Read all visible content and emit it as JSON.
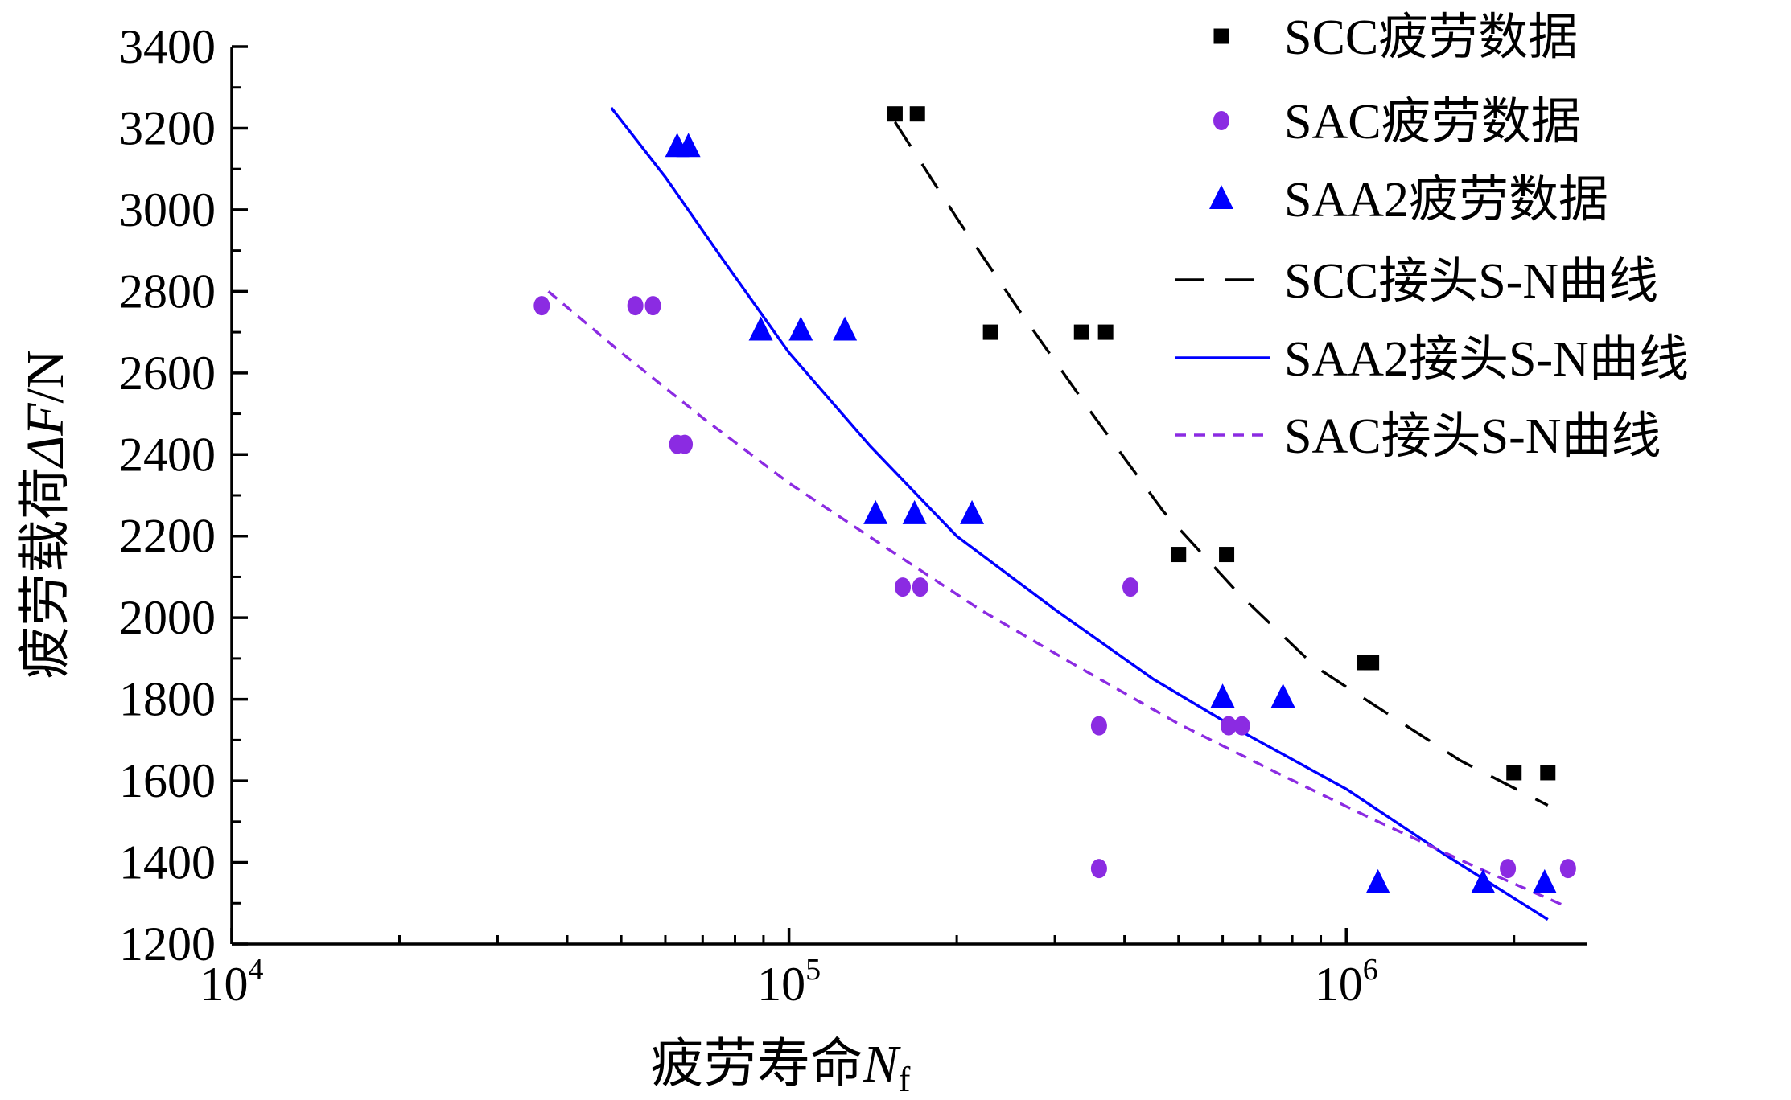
{
  "chart_data": {
    "type": "scatter",
    "xscale": "log",
    "xlim": [
      10000,
      2700000
    ],
    "ylim": [
      1200,
      3400
    ],
    "xlabel": {
      "main": "疲劳寿命",
      "var": "N",
      "sub": "f"
    },
    "ylabel": {
      "main": "疲劳载荷",
      "var": "ΔF",
      "unit": "/N"
    },
    "xticks": [
      {
        "value": 10000,
        "base": "10",
        "exp": "4"
      },
      {
        "value": 100000,
        "base": "10",
        "exp": "5"
      },
      {
        "value": 1000000,
        "base": "10",
        "exp": "6"
      }
    ],
    "yticks": [
      "1200",
      "1400",
      "1600",
      "1800",
      "2000",
      "2200",
      "2400",
      "2600",
      "2800",
      "3000",
      "3200",
      "3400"
    ],
    "grid": false,
    "legend_position": "top-right",
    "series": [
      {
        "name": "SCC疲劳数据",
        "kind": "marker",
        "marker": "square",
        "color": "#000000",
        "points": [
          [
            155000,
            3235
          ],
          [
            170000,
            3235
          ],
          [
            230000,
            2700
          ],
          [
            335000,
            2700
          ],
          [
            370000,
            2700
          ],
          [
            500000,
            2155
          ],
          [
            610000,
            2155
          ],
          [
            1080000,
            1890
          ],
          [
            1110000,
            1890
          ],
          [
            2000000,
            1620
          ],
          [
            2300000,
            1620
          ]
        ]
      },
      {
        "name": "SAC疲劳数据",
        "kind": "marker",
        "marker": "circle",
        "color": "#8b2be2",
        "points": [
          [
            36000,
            2765
          ],
          [
            53000,
            2765
          ],
          [
            57000,
            2765
          ],
          [
            63000,
            2425
          ],
          [
            65000,
            2425
          ],
          [
            160000,
            2075
          ],
          [
            172000,
            2075
          ],
          [
            360000,
            1735
          ],
          [
            410000,
            2075
          ],
          [
            615000,
            1735
          ],
          [
            650000,
            1735
          ],
          [
            360000,
            1385
          ],
          [
            1950000,
            1385
          ],
          [
            2500000,
            1385
          ]
        ]
      },
      {
        "name": "SAA2疲劳数据",
        "kind": "marker",
        "marker": "triangle",
        "color": "#0000ff",
        "points": [
          [
            63000,
            3155
          ],
          [
            66000,
            3155
          ],
          [
            89000,
            2705
          ],
          [
            105000,
            2705
          ],
          [
            126000,
            2705
          ],
          [
            143000,
            2255
          ],
          [
            168000,
            2255
          ],
          [
            213000,
            2255
          ],
          [
            600000,
            1805
          ],
          [
            770000,
            1805
          ],
          [
            1140000,
            1350
          ],
          [
            1760000,
            1350
          ],
          [
            2270000,
            1350
          ]
        ]
      },
      {
        "name": "SCC接头S-N曲线",
        "kind": "line",
        "dash": "long",
        "color": "#000000",
        "points": [
          [
            155000,
            3215
          ],
          [
            200000,
            2980
          ],
          [
            260000,
            2750
          ],
          [
            350000,
            2500
          ],
          [
            470000,
            2260
          ],
          [
            640000,
            2060
          ],
          [
            880000,
            1880
          ],
          [
            1200000,
            1760
          ],
          [
            1600000,
            1650
          ],
          [
            2300000,
            1540
          ]
        ]
      },
      {
        "name": "SAA2接头S-N曲线",
        "kind": "line",
        "dash": "solid",
        "color": "#0000ff",
        "points": [
          [
            48000,
            3250
          ],
          [
            60000,
            3080
          ],
          [
            75000,
            2890
          ],
          [
            100000,
            2650
          ],
          [
            140000,
            2420
          ],
          [
            200000,
            2200
          ],
          [
            300000,
            2020
          ],
          [
            450000,
            1850
          ],
          [
            650000,
            1720
          ],
          [
            1000000,
            1580
          ],
          [
            1500000,
            1420
          ],
          [
            2300000,
            1260
          ]
        ]
      },
      {
        "name": "SAC接头S-N曲线",
        "kind": "line",
        "dash": "short",
        "color": "#8b2be2",
        "points": [
          [
            37000,
            2800
          ],
          [
            50000,
            2650
          ],
          [
            70000,
            2490
          ],
          [
            100000,
            2330
          ],
          [
            150000,
            2170
          ],
          [
            220000,
            2020
          ],
          [
            330000,
            1880
          ],
          [
            500000,
            1740
          ],
          [
            750000,
            1620
          ],
          [
            1100000,
            1510
          ],
          [
            1700000,
            1390
          ],
          [
            2500000,
            1290
          ]
        ]
      }
    ]
  }
}
